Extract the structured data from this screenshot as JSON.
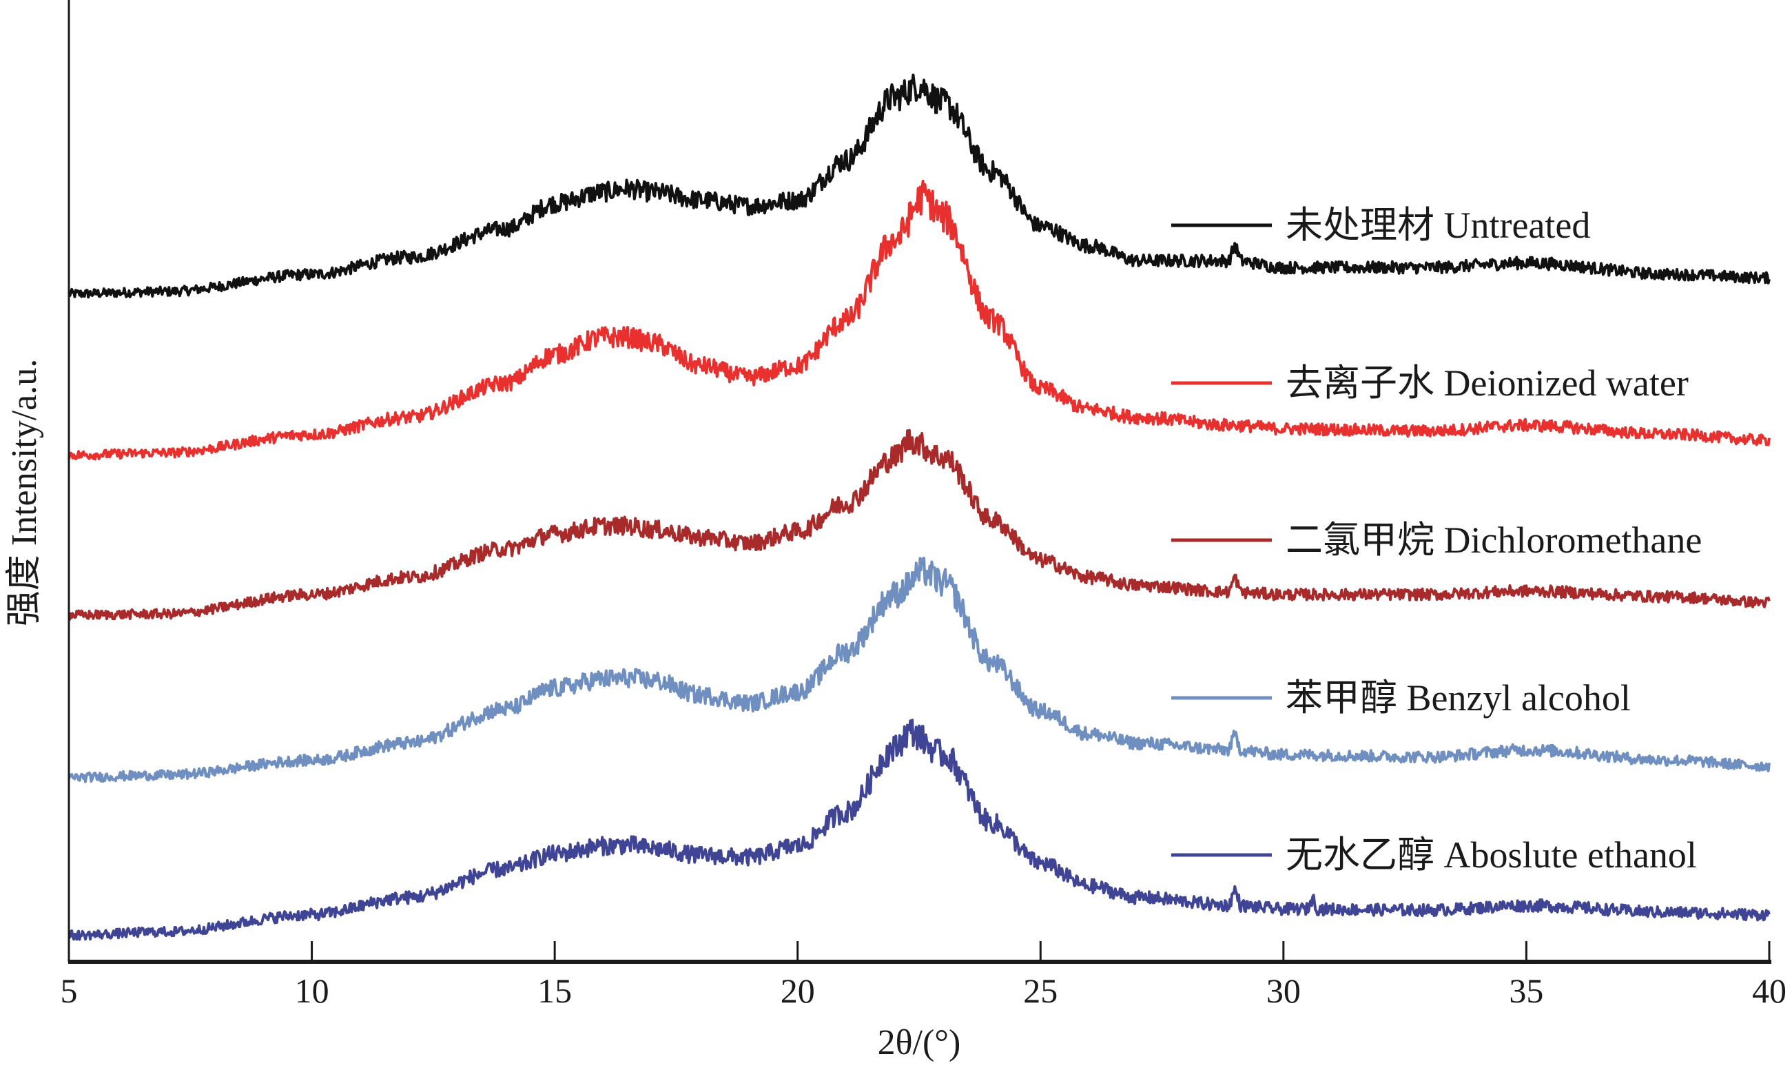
{
  "chart_data": {
    "type": "line",
    "title": "",
    "xlabel": "2θ/(°)",
    "ylabel": "强度  Intensity/a.u.",
    "xlim": [
      5,
      40
    ],
    "ylim": [
      0,
      840
    ],
    "xticks": [
      5,
      10,
      15,
      20,
      25,
      30,
      35,
      40
    ],
    "grid": false,
    "legend_position": "right",
    "series": [
      {
        "name": "未处理材  Untreated",
        "color": "#111111",
        "x": [
          5,
          7,
          10,
          12,
          14,
          15,
          16,
          16.5,
          17,
          18,
          19,
          20,
          21,
          22,
          22.5,
          23,
          24,
          25,
          26,
          27,
          29,
          30,
          33,
          35,
          38,
          40
        ],
        "y": [
          583,
          585,
          600,
          615,
          640,
          662,
          672,
          675,
          672,
          665,
          660,
          665,
          700,
          755,
          765,
          750,
          690,
          642,
          625,
          612,
          612,
          606,
          606,
          610,
          600,
          597
        ]
      },
      {
        "name": "去离子水  Deionized water",
        "color": "#e8312e",
        "x": [
          5,
          7,
          10,
          12,
          14,
          15,
          16,
          16.5,
          17,
          18,
          19,
          20,
          21,
          22,
          22.6,
          23,
          24,
          25,
          26,
          27,
          29,
          30,
          33,
          35,
          38,
          40
        ],
        "y": [
          442,
          444,
          460,
          475,
          505,
          530,
          545,
          545,
          540,
          520,
          510,
          520,
          560,
          630,
          668,
          650,
          560,
          500,
          482,
          475,
          468,
          465,
          463,
          468,
          460,
          455
        ]
      },
      {
        "name": "二氯甲烷  Dichloromethane",
        "color": "#a82a2a",
        "x": [
          5,
          7,
          10,
          12,
          14,
          15,
          16,
          16.5,
          17,
          18,
          19,
          20,
          21,
          22,
          22.3,
          23,
          24,
          25,
          26,
          27,
          29,
          30,
          33,
          35,
          38,
          40
        ],
        "y": [
          302,
          303,
          320,
          335,
          360,
          373,
          380,
          380,
          377,
          370,
          365,
          375,
          400,
          440,
          455,
          440,
          385,
          350,
          335,
          328,
          322,
          320,
          320,
          323,
          318,
          313
        ]
      },
      {
        "name": "苯甲醇  Benzyl alcohol",
        "color": "#6f8fc0",
        "x": [
          5,
          7,
          10,
          12,
          14,
          15,
          16,
          16.5,
          17,
          18,
          19,
          20,
          21,
          22,
          22.6,
          23,
          24,
          25,
          26,
          27,
          29,
          30,
          33,
          35,
          38,
          40
        ],
        "y": [
          160,
          162,
          175,
          190,
          220,
          238,
          246,
          247,
          245,
          232,
          225,
          235,
          270,
          320,
          340,
          330,
          260,
          218,
          198,
          190,
          184,
          180,
          178,
          184,
          175,
          170
        ]
      },
      {
        "name": "无水乙醇  Aboslute ethanol",
        "color": "#3f4594",
        "x": [
          5,
          7,
          10,
          12,
          14,
          15,
          16,
          16.5,
          17,
          18,
          19,
          20,
          21,
          22,
          22.3,
          23,
          24,
          25,
          26,
          27,
          29,
          30,
          33,
          35,
          38,
          40
        ],
        "y": [
          22,
          25,
          40,
          55,
          80,
          93,
          100,
          101,
          98,
          92,
          90,
          100,
          130,
          185,
          200,
          180,
          120,
          85,
          65,
          55,
          48,
          45,
          44,
          48,
          42,
          40
        ]
      }
    ]
  }
}
